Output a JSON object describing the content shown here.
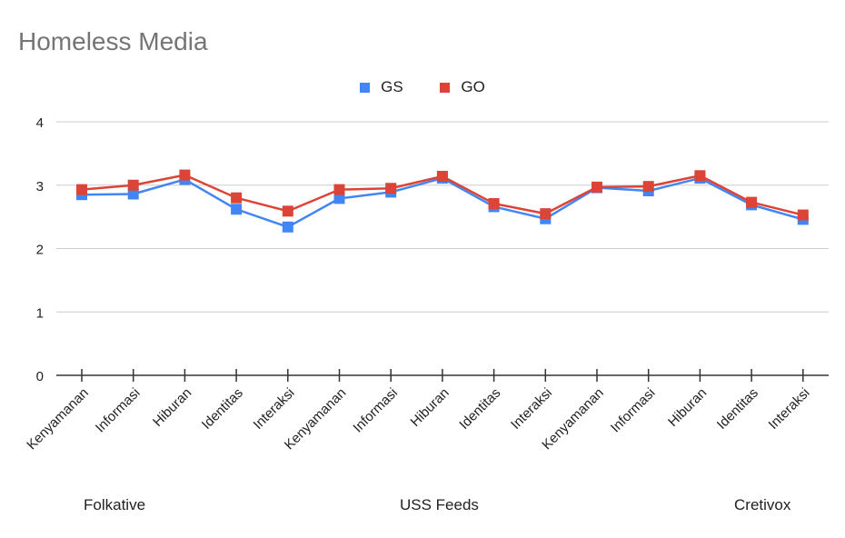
{
  "chart_data": {
    "type": "line",
    "title": "Homeless Media",
    "categories": [
      "Kenyamanan",
      "Informasi",
      "Hiburan",
      "Identitas",
      "Interaksi",
      "Kenyamanan",
      "Informasi",
      "Hiburan",
      "Identitas",
      "Interaksi",
      "Kenyamanan",
      "Informasi",
      "Hiburan",
      "Identitas",
      "Interaksi"
    ],
    "groups": [
      "Folkative",
      "USS Feeds",
      "Cretivox"
    ],
    "series": [
      {
        "name": "GS",
        "color": "#4285f4",
        "values": [
          2.85,
          2.86,
          3.09,
          2.62,
          2.34,
          2.79,
          2.89,
          3.11,
          2.66,
          2.47,
          2.96,
          2.91,
          3.11,
          2.69,
          2.46
        ]
      },
      {
        "name": "GO",
        "color": "#db4437",
        "values": [
          2.93,
          3.0,
          3.16,
          2.8,
          2.59,
          2.93,
          2.95,
          3.14,
          2.71,
          2.55,
          2.97,
          2.98,
          3.15,
          2.73,
          2.53
        ]
      }
    ],
    "yticks": [
      0,
      1,
      2,
      3,
      4
    ],
    "ylim": [
      0,
      4
    ],
    "xlabel": "",
    "ylabel": "",
    "grid": true,
    "legend": "top-center"
  }
}
